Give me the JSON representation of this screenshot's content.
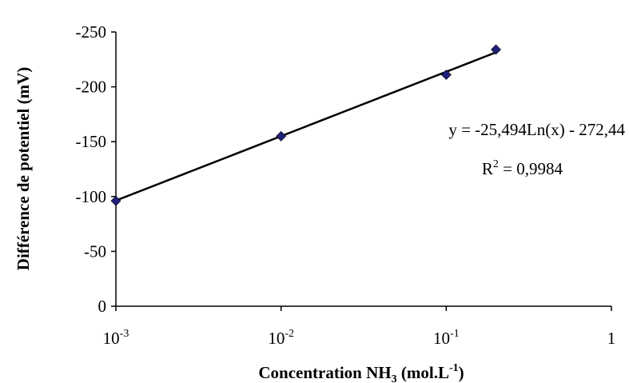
{
  "chart_data": {
    "type": "scatter",
    "x_scale": "log",
    "y_reversed": true,
    "x_ticks": [
      {
        "value": 0.001,
        "base": "10",
        "exp": "-3"
      },
      {
        "value": 0.01,
        "base": "10",
        "exp": "-2"
      },
      {
        "value": 0.1,
        "base": "10",
        "exp": "-1"
      },
      {
        "value": 1,
        "base": "1",
        "exp": ""
      }
    ],
    "y_ticks": [
      {
        "value": 0,
        "label": "0"
      },
      {
        "value": -50,
        "label": "-50"
      },
      {
        "value": -100,
        "label": "-100"
      },
      {
        "value": -150,
        "label": "-150"
      },
      {
        "value": -200,
        "label": "-200"
      },
      {
        "value": -250,
        "label": "-250"
      }
    ],
    "xlim": [
      0.001,
      1
    ],
    "ylim": [
      0,
      -250
    ],
    "grid": false,
    "xlabel": {
      "main": "Concentration NH",
      "sub": "3",
      "paren": " (mol.L",
      "sup": "-1",
      "close": ")"
    },
    "ylabel": "Différence de potentiel (mV)",
    "series": [
      {
        "marker": "diamond",
        "color": "#1f1f7a",
        "x": [
          0.001,
          0.01,
          0.1,
          0.2
        ],
        "y": [
          -96,
          -155,
          -211,
          -234
        ]
      }
    ],
    "trendline": {
      "type": "log",
      "a": -25.494,
      "b": -272.44,
      "x_range": [
        0.001,
        0.2
      ],
      "color": "#000000"
    },
    "annotation": {
      "equation": "y = -25,494Ln(x) - 272,44",
      "r2_prefix": "R",
      "r2_exp": "2",
      "r2_value": " = 0,9984"
    }
  }
}
